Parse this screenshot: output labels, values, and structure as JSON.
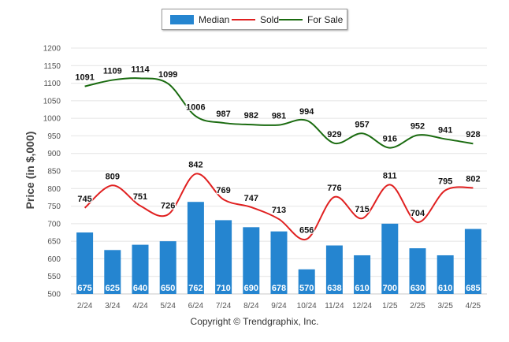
{
  "chart_data": {
    "type": "bar+line",
    "categories": [
      "2/24",
      "3/24",
      "4/24",
      "5/24",
      "6/24",
      "7/24",
      "8/24",
      "9/24",
      "10/24",
      "11/24",
      "12/24",
      "1/25",
      "2/25",
      "3/25",
      "4/25"
    ],
    "series": [
      {
        "name": "Median",
        "kind": "bar",
        "color": "#2585d0",
        "values": [
          675,
          625,
          640,
          650,
          762,
          710,
          690,
          678,
          570,
          638,
          610,
          700,
          630,
          610,
          685
        ]
      },
      {
        "name": "Sold",
        "kind": "line",
        "color": "#e02020",
        "values": [
          745,
          809,
          751,
          726,
          842,
          769,
          747,
          713,
          656,
          776,
          715,
          811,
          704,
          795,
          802
        ]
      },
      {
        "name": "For Sale",
        "kind": "line",
        "color": "#1a6b10",
        "values": [
          1091,
          1109,
          1114,
          1099,
          1006,
          987,
          982,
          981,
          994,
          929,
          957,
          916,
          952,
          941,
          928
        ]
      }
    ],
    "ylabel": "Price (in $,000)",
    "ylim": [
      500,
      1200
    ],
    "yticks": [
      500,
      550,
      600,
      650,
      700,
      750,
      800,
      850,
      900,
      950,
      1000,
      1050,
      1100,
      1150,
      1200
    ],
    "grid": true,
    "legend_position": "top-center"
  },
  "footer": {
    "copyright": "Copyright © Trendgraphix, Inc."
  }
}
